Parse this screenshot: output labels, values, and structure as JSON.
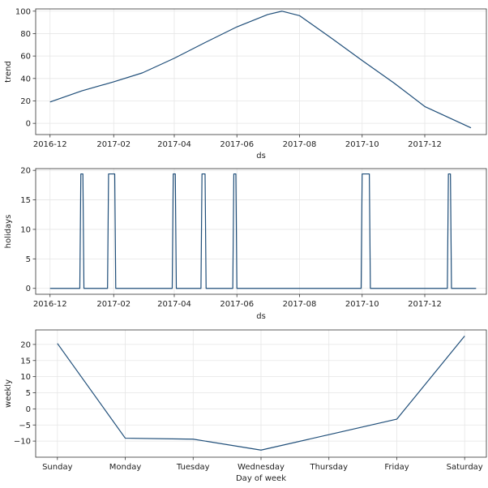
{
  "chart_data": [
    {
      "type": "line",
      "xlabel": "ds",
      "ylabel": "trend",
      "x_type": "date",
      "xlim": [
        "2016-11-17",
        "2018-01-30"
      ],
      "ylim": [
        -10,
        102
      ],
      "xticks": [
        "2016-12-01",
        "2017-02-01",
        "2017-04-01",
        "2017-06-01",
        "2017-08-01",
        "2017-10-01",
        "2017-12-01"
      ],
      "xtick_labels": [
        "2016-12",
        "2017-02",
        "2017-04",
        "2017-06",
        "2017-08",
        "2017-10",
        "2017-12"
      ],
      "yticks": [
        0,
        20,
        40,
        60,
        80,
        100
      ],
      "ytick_labels": [
        "0",
        "20",
        "40",
        "60",
        "80",
        "100"
      ],
      "grid": true,
      "series": [
        {
          "color": "#1f4e79",
          "points": [
            [
              "2016-12-01",
              19
            ],
            [
              "2017-01-01",
              29
            ],
            [
              "2017-02-01",
              37
            ],
            [
              "2017-03-01",
              45
            ],
            [
              "2017-04-01",
              58
            ],
            [
              "2017-05-01",
              72
            ],
            [
              "2017-06-01",
              86
            ],
            [
              "2017-07-01",
              97
            ],
            [
              "2017-07-15",
              100
            ],
            [
              "2017-08-01",
              96
            ],
            [
              "2017-09-01",
              76
            ],
            [
              "2017-10-01",
              56
            ],
            [
              "2017-11-01",
              36
            ],
            [
              "2017-12-01",
              15
            ],
            [
              "2018-01-15",
              -4
            ]
          ]
        }
      ]
    },
    {
      "type": "line",
      "xlabel": "ds",
      "ylabel": "holidays",
      "x_type": "date",
      "xlim": [
        "2016-11-17",
        "2018-01-30"
      ],
      "ylim": [
        -1,
        20.3
      ],
      "xticks": [
        "2016-12-01",
        "2017-02-01",
        "2017-04-01",
        "2017-06-01",
        "2017-08-01",
        "2017-10-01",
        "2017-12-01"
      ],
      "xtick_labels": [
        "2016-12",
        "2017-02",
        "2017-04",
        "2017-06",
        "2017-08",
        "2017-10",
        "2017-12"
      ],
      "yticks": [
        0,
        5,
        10,
        15,
        20
      ],
      "ytick_labels": [
        "0",
        "5",
        "10",
        "15",
        "20"
      ],
      "grid": true,
      "series": [
        {
          "color": "#1f4e79",
          "points": [
            [
              "2016-12-01",
              0
            ],
            [
              "2016-12-30",
              0
            ],
            [
              "2016-12-31",
              19.4
            ],
            [
              "2017-01-02",
              19.4
            ],
            [
              "2017-01-03",
              0
            ],
            [
              "2017-01-26",
              0
            ],
            [
              "2017-01-27",
              19.4
            ],
            [
              "2017-02-02",
              19.4
            ],
            [
              "2017-02-03",
              0
            ],
            [
              "2017-03-30",
              0
            ],
            [
              "2017-03-31",
              19.4
            ],
            [
              "2017-04-02",
              19.4
            ],
            [
              "2017-04-03",
              0
            ],
            [
              "2017-04-27",
              0
            ],
            [
              "2017-04-28",
              19.4
            ],
            [
              "2017-05-01",
              19.4
            ],
            [
              "2017-05-02",
              0
            ],
            [
              "2017-05-28",
              0
            ],
            [
              "2017-05-29",
              19.4
            ],
            [
              "2017-05-31",
              19.4
            ],
            [
              "2017-06-01",
              0
            ],
            [
              "2017-09-30",
              0
            ],
            [
              "2017-10-01",
              19.4
            ],
            [
              "2017-10-08",
              19.4
            ],
            [
              "2017-10-09",
              0
            ],
            [
              "2017-12-23",
              0
            ],
            [
              "2017-12-24",
              19.4
            ],
            [
              "2017-12-26",
              19.4
            ],
            [
              "2017-12-27",
              0
            ],
            [
              "2018-01-20",
              0
            ]
          ]
        }
      ]
    },
    {
      "type": "line",
      "xlabel": "Day of week",
      "ylabel": "weekly",
      "categories": [
        "Sunday",
        "Monday",
        "Tuesday",
        "Wednesday",
        "Thursday",
        "Friday",
        "Saturday"
      ],
      "xlim": [
        -0.32,
        6.32
      ],
      "ylim": [
        -15,
        24.5
      ],
      "yticks": [
        -10,
        -5,
        0,
        5,
        10,
        15,
        20
      ],
      "ytick_labels": [
        "−10",
        "−5",
        "0",
        "5",
        "10",
        "15",
        "20"
      ],
      "grid": true,
      "series": [
        {
          "color": "#1f4e79",
          "values": [
            20.3,
            -9.1,
            -9.4,
            -12.8,
            -8.0,
            -3.2,
            22.6
          ]
        }
      ]
    }
  ]
}
